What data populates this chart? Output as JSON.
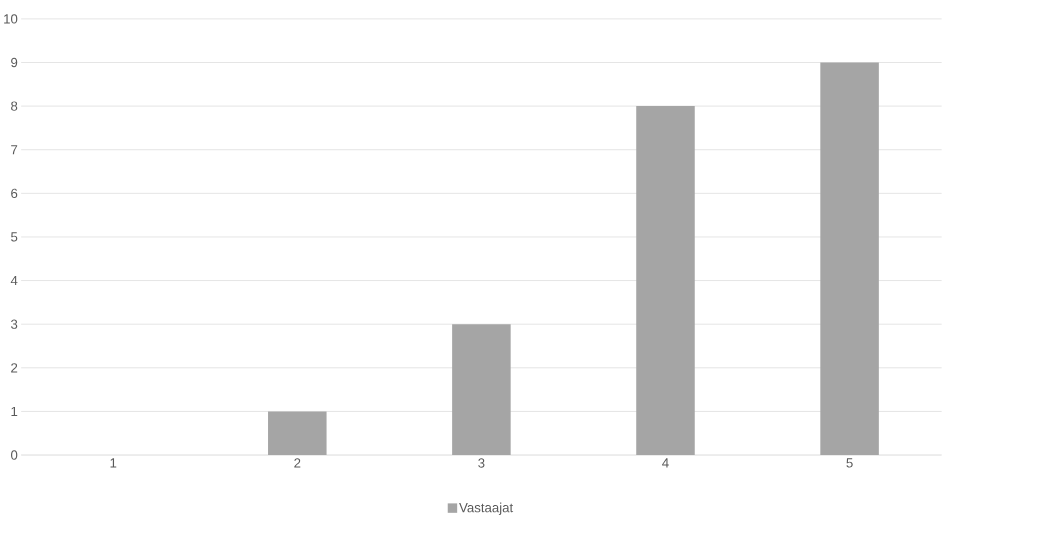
{
  "chart_data": {
    "type": "bar",
    "categories": [
      "1",
      "2",
      "3",
      "4",
      "5"
    ],
    "series": [
      {
        "name": "Vastaajat",
        "color": "#a5a5a5",
        "values": [
          0,
          1,
          3,
          8,
          9
        ]
      }
    ],
    "ylim": [
      0,
      10
    ],
    "yticks": [
      0,
      1,
      2,
      3,
      4,
      5,
      6,
      7,
      8,
      9,
      10
    ],
    "grid": "y",
    "legend": "bottom"
  }
}
